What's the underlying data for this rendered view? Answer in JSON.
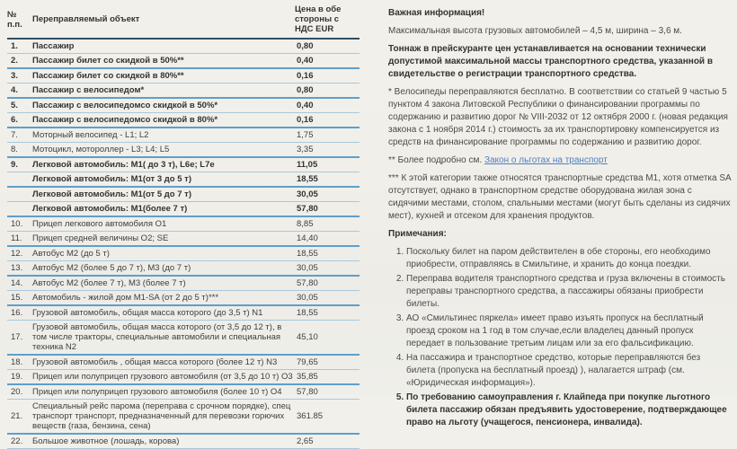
{
  "colors": {
    "link": "#4e7fc0",
    "header_divider": "#2f5068",
    "row_divider_thick": "#5f9fca",
    "row_divider_thin": "#a6c9de",
    "background": "#f1efe9"
  },
  "table": {
    "header": {
      "num": "№ п.п.",
      "object": "Переправляемый объект",
      "price": "Цена в обе стороны с НДС EUR"
    },
    "rows": [
      {
        "num": "1.",
        "object": "Пассажир",
        "price": "0,80",
        "bold": true
      },
      {
        "num": "2.",
        "object": "Пассажир билет со скидкой в 50%**",
        "price": "0,40",
        "bold": true
      },
      {
        "num": "3.",
        "object": "Пассажир билет со скидкой в 80%**",
        "price": "0,16",
        "bold": true
      },
      {
        "num": "4.",
        "object": "Пассажир с велосипедом*",
        "price": "0,80",
        "bold": true
      },
      {
        "num": "5.",
        "object": "Пассажир с велосипедомсо скидкой в 50%*",
        "price": "0,40",
        "bold": true
      },
      {
        "num": "6.",
        "object": "Пассажир с велосипедомсо скидкой в 80%*",
        "price": "0,16",
        "bold": true
      },
      {
        "num": "7.",
        "object": "Моторный велосипед - L1; L2",
        "price": "1,75",
        "bold": false
      },
      {
        "num": "8.",
        "object": "Мотоцикл, мотороллер - L3; L4; L5",
        "price": "3,35",
        "bold": false
      },
      {
        "num": "9.",
        "object": "Легковой автомобиль: М1( до 3 т), L6e; L7e",
        "price": "11,05",
        "bold": true
      },
      {
        "num": "",
        "object": "Легковой автомобиль: М1(от 3 до 5 т)",
        "price": "18,55",
        "bold": true
      },
      {
        "num": "",
        "object": "Легковой автомобиль: М1(от 5 до 7 т)",
        "price": "30,05",
        "bold": true
      },
      {
        "num": "",
        "object": "Легковой автомобиль: М1(более 7 т)",
        "price": "57,80",
        "bold": true
      },
      {
        "num": "10.",
        "object": "Прицеп легкового автомобиля О1",
        "price": "8,85",
        "bold": false
      },
      {
        "num": "11.",
        "object": "Прицеп средней величины О2; SE",
        "price": "14,40",
        "bold": false
      },
      {
        "num": "12.",
        "object": "Автобус М2 (до 5 т)",
        "price": "18,55",
        "bold": false
      },
      {
        "num": "13.",
        "object": "Автобус М2 (более 5 до 7 т), М3 (до 7 т)",
        "price": "30,05",
        "bold": false
      },
      {
        "num": "14.",
        "object": "Автобус М2 (более 7 т), М3 (более 7 т)",
        "price": "57,80",
        "bold": false
      },
      {
        "num": "15.",
        "object": "Автомобиль - жилой дом М1-SA (от 2 до 5 т)***",
        "price": "30,05",
        "bold": false
      },
      {
        "num": "16.",
        "object": "Грузовой автомобиль, общая масса которого (до 3,5 т) N1",
        "price": "18,55",
        "bold": false
      },
      {
        "num": "17.",
        "object": "Грузовой автомобиль, общая масса которого (от 3,5 до 12 т), в том числе тракторы, специальные автомобили и специальная техника N2",
        "price": "45,10",
        "bold": false
      },
      {
        "num": "18.",
        "object": "Грузовой автомобиль , общая масса которого (более 12 т) N3",
        "price": "79,65",
        "bold": false
      },
      {
        "num": "19.",
        "object": "Прицеп или полуприцеп грузового автомобиля (от 3,5 до 10 т) О3",
        "price": "35,85",
        "bold": false
      },
      {
        "num": "20.",
        "object": "Прицеп или полуприцеп грузового автомобиля (более 10 т) О4",
        "price": "57,80",
        "bold": false
      },
      {
        "num": "21.",
        "object": "Специальный рейс парома (переправа с срочном порядке), спец транспорт транспорт, предназначенный для перевозки горючих веществ (газа, бензина, сена)",
        "price": "361.85",
        "bold": false
      },
      {
        "num": "22.",
        "object": "Большое животное (лошадь, корова)",
        "price": "2,65",
        "bold": false
      }
    ]
  },
  "info": {
    "title": "Важная информация!",
    "p_dimensions": "Максимальная высота грузовых автомобилей – 4,5 м, ширина – 3,6 м.",
    "p_tonnage": "Тоннаж в прейскуранте цен устанавливается на основании технически допустимой максимальной массы транспортного средства, указанной в свидетельстве о регистрации транспортного средства.",
    "p_bicycles": "* Велосипеды переправляются бесплатно. В соответствии со статьей 9 частью 5 пунктом 4 закона Литовской Республики о финансировании программы по содержанию и развитию дорог № VIII-2032 от 12 октября 2000 г. (новая редакция закона с 1 ноября 2014 г.) стоимость за их транспортировку компенсируется из средств на финансирование программы по содержанию и развитию дорог.",
    "p_more_prefix": "** Более подробно см. ",
    "link_label": "Закон о льготах на транспорт",
    "p_category": "*** К этой категории также относятся транспортные средства М1, хотя отметка SA отсутствует, однако в транспортном средстве оборудована жилая зона с сидячими местами, столом, спальными местами (могут быть сделаны из сидячих мест), кухней и отсеком для хранения продуктов.",
    "notes_title": "Примечания:",
    "notes": [
      {
        "text": "Поскольку билет на паром действителен в обе стороны, его необходимо приобрести, отправляясь в Смильтине, и хранить до конца поездки.",
        "bold": false
      },
      {
        "text": "Переправа водителя транспортного средства и груза включены в стоимость переправы транспортного средства, а пассажиры обязаны приобрести билеты.",
        "bold": false
      },
      {
        "text": "АО «Смильтинес пяркела» имеет право изъять пропуск на бесплатный проезд сроком на 1 год в том случае,если владелец  данный пропуск передает в пользование третьим лицам или за его фальсификацию.",
        "bold": false
      },
      {
        "text": "На пассажира и транспортное средство, которые переправляются без билета (пропуска на бесплатный проезд) ), налагается штраф (см. «Юридическая информация»).",
        "bold": false
      },
      {
        "text": "По требованию самоуправления г. Клайпеда при покупке льготного билета пассажир обязан предъявить удостоверение, подтверждающее право на льготу (учащегося, пенсионера, инвалида).",
        "bold": true
      }
    ]
  }
}
